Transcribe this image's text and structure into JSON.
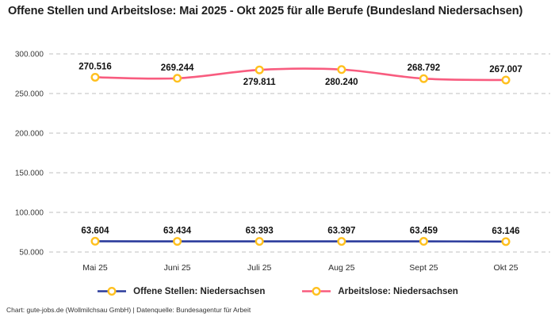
{
  "title": "Offene Stellen und Arbeitslose: Mai 2025 - Okt 2025 für alle Berufe (Bundesland Niedersachsen)",
  "footer": "Chart: gute-jobs.de (Wollmilchsau GmbH) | Datenquelle: Bundesagentur für Arbeit",
  "colors": {
    "background": "#ffffff",
    "title_text": "#1d1d1d",
    "gridline": "#cccccc",
    "axis_tick_text": "#3a3a3a",
    "data_label_text": "#111111",
    "marker_ring": "#FFC01E",
    "marker_fill": "#ffffff",
    "series_offene_stellen": "#2B3B9C",
    "series_arbeitslose": "#F85C7F"
  },
  "chart_data": {
    "type": "line",
    "title": "Offene Stellen und Arbeitslose: Mai 2025 - Okt 2025 für alle Berufe (Bundesland Niedersachsen)",
    "categories": [
      "Mai 25",
      "Juni 25",
      "Juli 25",
      "Aug 25",
      "Sept 25",
      "Okt 25"
    ],
    "ylim": [
      50000,
      300000
    ],
    "grid": "horizontal-dashed",
    "legend_position": "bottom",
    "y_ticks": [
      {
        "value": 300000,
        "label": "300.000"
      },
      {
        "value": 250000,
        "label": "250.000"
      },
      {
        "value": 200000,
        "label": "200.000"
      },
      {
        "value": 150000,
        "label": "150.000"
      },
      {
        "value": 100000,
        "label": "100.000"
      },
      {
        "value": 50000,
        "label": "50.000"
      }
    ],
    "marker": {
      "fill": "#ffffff",
      "stroke": "#FFC01E"
    },
    "series": [
      {
        "name": "Offene Stellen: Niedersachsen",
        "slug": "offene-stellen",
        "color": "#2B3B9C",
        "values": [
          63604,
          63434,
          63393,
          63397,
          63459,
          63146
        ],
        "labels": [
          "63.604",
          "63.434",
          "63.393",
          "63.397",
          "63.459",
          "63.146"
        ],
        "label_side": [
          "above",
          "above",
          "above",
          "above",
          "above",
          "above"
        ]
      },
      {
        "name": "Arbeitslose: Niedersachsen",
        "slug": "arbeitslose",
        "color": "#F85C7F",
        "values": [
          270516,
          269244,
          279811,
          280240,
          268792,
          267007
        ],
        "labels": [
          "270.516",
          "269.244",
          "279.811",
          "280.240",
          "268.792",
          "267.007"
        ],
        "label_side": [
          "above",
          "above",
          "below",
          "below",
          "above",
          "above"
        ]
      }
    ]
  }
}
